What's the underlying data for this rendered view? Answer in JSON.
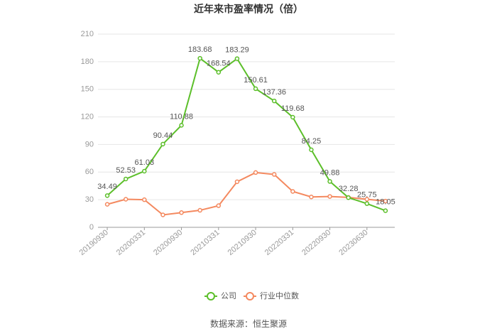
{
  "chart_data": {
    "type": "line",
    "title": "近年来市盈率情况（倍）",
    "source": "数据来源：恒生聚源",
    "categories": [
      "20190930",
      null,
      "20200331",
      null,
      "20200930",
      null,
      "20210331",
      null,
      "20210930",
      null,
      "20220331",
      null,
      "20220930",
      null,
      "20230630",
      null
    ],
    "series": [
      {
        "name": "公司",
        "color": "#5cbf2a",
        "values": [
          34.49,
          52.53,
          61.03,
          90.44,
          110.88,
          183.68,
          168.54,
          183.29,
          150.61,
          137.36,
          119.68,
          84.25,
          49.88,
          32.28,
          25.75,
          18.05
        ]
      },
      {
        "name": "行业中位数",
        "color": "#f4895f",
        "values": [
          25,
          30.5,
          30,
          13.5,
          16,
          18.5,
          23.5,
          49.5,
          59.5,
          57.5,
          39,
          33,
          33.5,
          32.5,
          30.5,
          28.5
        ]
      }
    ],
    "ylim": [
      0,
      210
    ],
    "yticks": [
      0,
      30,
      60,
      90,
      120,
      150,
      180,
      210
    ],
    "grid": true
  }
}
